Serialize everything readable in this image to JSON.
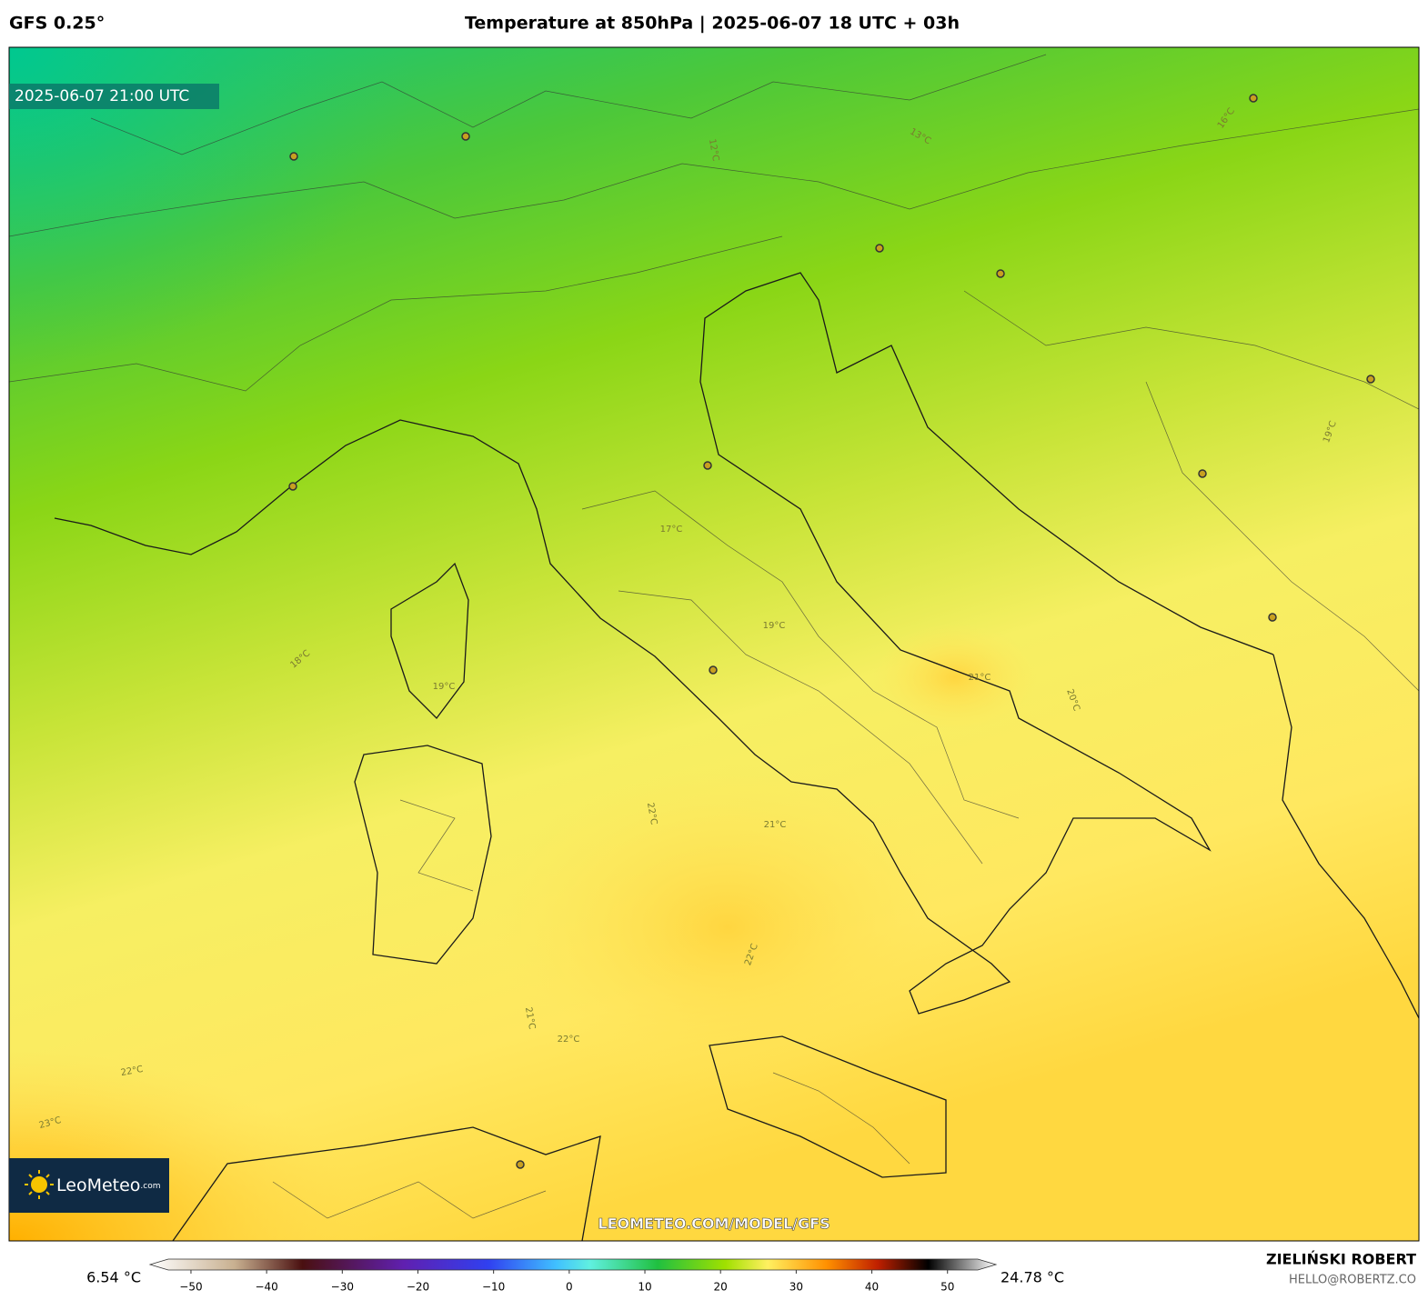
{
  "header": {
    "model": "GFS 0.25°",
    "title": "Temperature at 850hPa | 2025-06-07 18 UTC + 03h"
  },
  "map": {
    "timestamp": "2025-06-07 21:00 UTC",
    "watermark": "LEOMETEO.COM/MODEL/GFS",
    "logo": {
      "name": "LeoMeteo",
      "suffix": ".com"
    },
    "contour_labels": [
      "13°C",
      "16°C",
      "12°C",
      "17°C",
      "19°C",
      "18°C",
      "19°C",
      "21°C",
      "20°C",
      "22°C",
      "21°C",
      "22°C",
      "21°C",
      "22°C",
      "22°C",
      "23°C",
      "19°C"
    ]
  },
  "colorbar": {
    "min_label": "6.54 °C",
    "max_label": "24.78 °C",
    "lim": [
      -53,
      54
    ],
    "ticks": [
      {
        "value": -50,
        "label": "−50"
      },
      {
        "value": -40,
        "label": "−40"
      },
      {
        "value": -30,
        "label": "−30"
      },
      {
        "value": -20,
        "label": "−20"
      },
      {
        "value": -10,
        "label": "−10"
      },
      0,
      10,
      20,
      30,
      40,
      50
    ]
  },
  "footer": {
    "author": "ZIELIŃSKI ROBERT",
    "email": "HELLO@ROBERTZ.CO"
  }
}
